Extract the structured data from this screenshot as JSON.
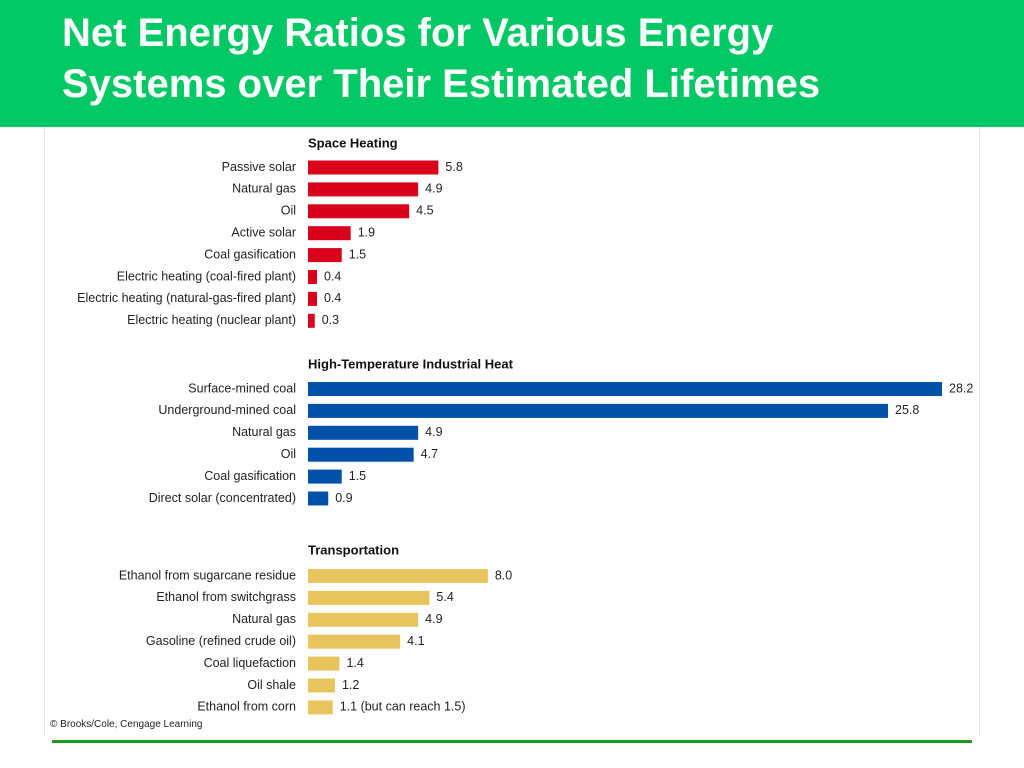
{
  "slide": {
    "title_line1": "Net Energy Ratios for Various Energy",
    "title_line2": "Systems over Their Estimated Lifetimes",
    "credit": "© Brooks/Cole, Cengage Learning"
  },
  "colors": {
    "banner": "#00c864",
    "footer_rule": "#1a9a1a",
    "space_heating": "#d9001b",
    "industrial_heat": "#0052a8",
    "transportation": "#e8c45c"
  },
  "chart_data": [
    {
      "type": "bar",
      "orientation": "horizontal",
      "title": "Space Heating",
      "color": "#d9001b",
      "categories": [
        "Passive solar",
        "Natural gas",
        "Oil",
        "Active solar",
        "Coal gasification",
        "Electric heating (coal-fired plant)",
        "Electric heating (natural-gas-fired plant)",
        "Electric heating (nuclear plant)"
      ],
      "values": [
        5.8,
        4.9,
        4.5,
        1.9,
        1.5,
        0.4,
        0.4,
        0.3
      ],
      "value_labels": [
        "5.8",
        "4.9",
        "4.5",
        "1.9",
        "1.5",
        "0.4",
        "0.4",
        "0.3"
      ],
      "xlim": [
        0,
        28.2
      ],
      "grid": false
    },
    {
      "type": "bar",
      "orientation": "horizontal",
      "title": "High-Temperature Industrial Heat",
      "color": "#0052a8",
      "categories": [
        "Surface-mined coal",
        "Underground-mined coal",
        "Natural gas",
        "Oil",
        "Coal gasification",
        "Direct solar (concentrated)"
      ],
      "values": [
        28.2,
        25.8,
        4.9,
        4.7,
        1.5,
        0.9
      ],
      "value_labels": [
        "28.2",
        "25.8",
        "4.9",
        "4.7",
        "1.5",
        "0.9"
      ],
      "xlim": [
        0,
        28.2
      ],
      "grid": false
    },
    {
      "type": "bar",
      "orientation": "horizontal",
      "title": "Transportation",
      "color": "#e8c45c",
      "categories": [
        "Ethanol from sugarcane residue",
        "Ethanol from switchgrass",
        "Natural gas",
        "Gasoline (refined crude oil)",
        "Coal liquefaction",
        "Oil shale",
        "Ethanol from corn"
      ],
      "values": [
        8.0,
        5.4,
        4.9,
        4.1,
        1.4,
        1.2,
        1.1
      ],
      "value_labels": [
        "8.0",
        "5.4",
        "4.9",
        "4.1",
        "1.4",
        "1.2",
        "1.1 (but can reach 1.5)"
      ],
      "xlim": [
        0,
        28.2
      ],
      "grid": false
    }
  ]
}
